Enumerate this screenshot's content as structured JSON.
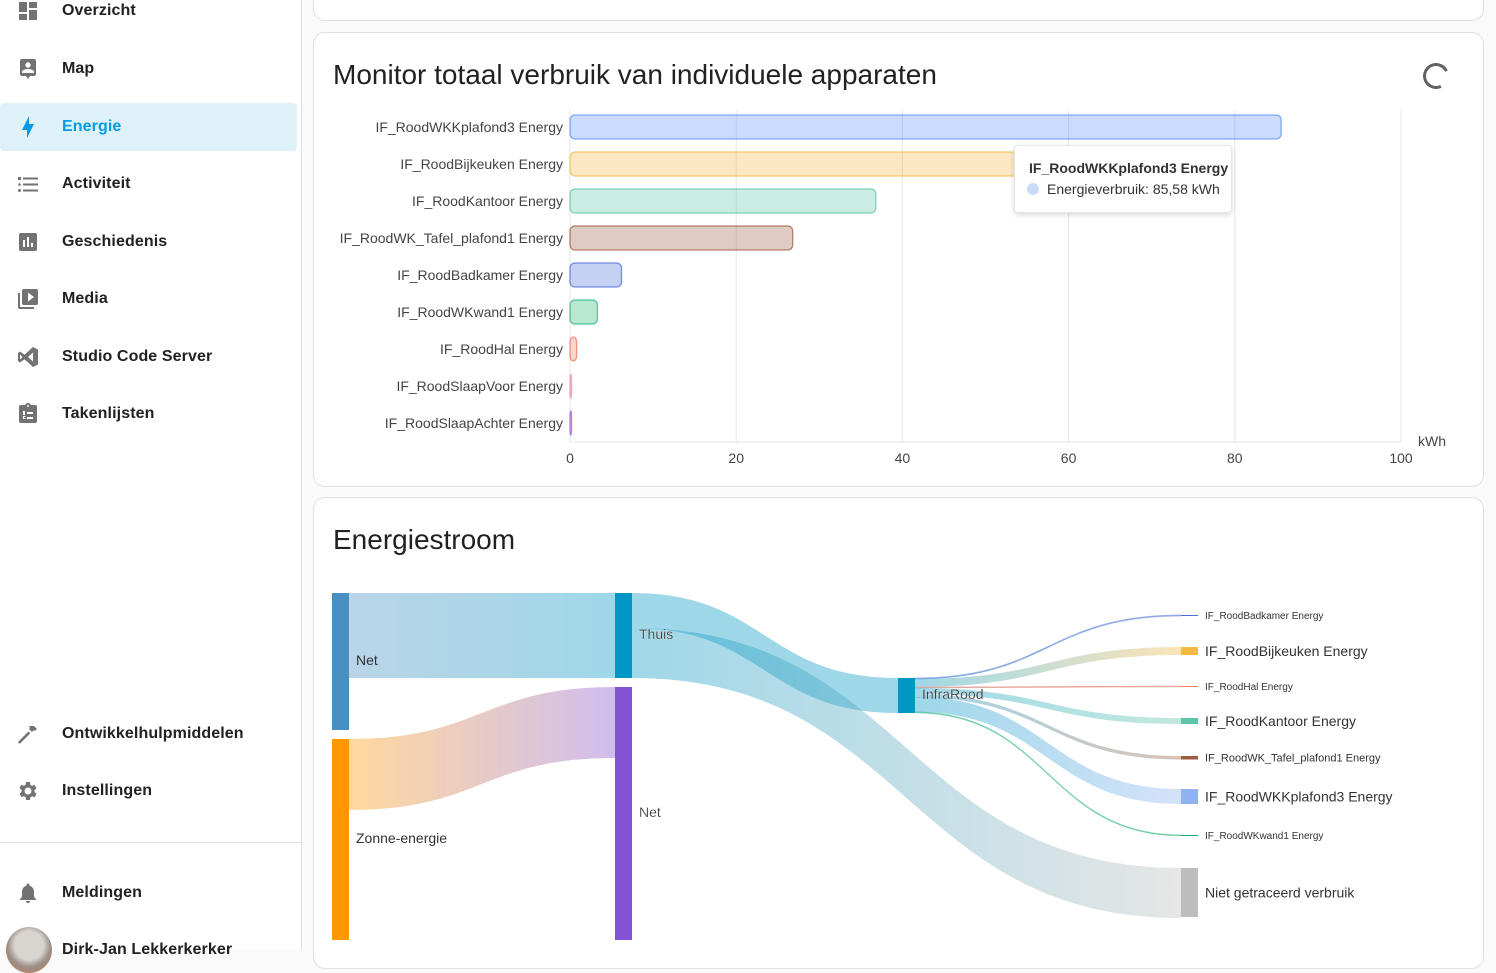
{
  "sidebar": {
    "items": [
      {
        "label": "Overzicht",
        "icon": "dashboard-icon"
      },
      {
        "label": "Map",
        "icon": "map-person-icon"
      },
      {
        "label": "Energie",
        "icon": "lightning-icon",
        "active": true
      },
      {
        "label": "Activiteit",
        "icon": "list-icon"
      },
      {
        "label": "Geschiedenis",
        "icon": "chart-box-icon"
      },
      {
        "label": "Media",
        "icon": "play-box-icon"
      },
      {
        "label": "Studio Code Server",
        "icon": "vscode-icon"
      },
      {
        "label": "Takenlijsten",
        "icon": "clipboard-list-icon"
      }
    ],
    "bottom_items": [
      {
        "label": "Ontwikkelhulpmiddelen",
        "icon": "hammer-icon"
      },
      {
        "label": "Instellingen",
        "icon": "gear-icon"
      }
    ],
    "notifications": {
      "label": "Meldingen",
      "icon": "bell-icon"
    },
    "user": {
      "name": "Dirk-Jan Lekkerkerker"
    },
    "accent_color": "#039be5"
  },
  "device_card": {
    "title": "Monitor totaal verbruik van individuele apparaten",
    "tooltip": {
      "title": "IF_RoodWKKplafond3 Energy",
      "value": "Energieverbruik: 85,58 kWh"
    }
  },
  "sankey_card": {
    "title": "Energiestroom"
  },
  "chart_data": [
    {
      "type": "bar",
      "orientation": "horizontal",
      "title": "Monitor totaal verbruik van individuele apparaten",
      "xlabel": "kWh",
      "ylabel": "",
      "xlim": [
        0,
        100
      ],
      "xticks": [
        "0",
        "20",
        "40",
        "60",
        "80",
        "100"
      ],
      "grid": true,
      "categories": [
        "IF_RoodWKKplafond3 Energy",
        "IF_RoodBijkeuken Energy",
        "IF_RoodKantoor Energy",
        "IF_RoodWK_Tafel_plafond1 Energy",
        "IF_RoodBadkamer Energy",
        "IF_RoodWKwand1 Energy",
        "IF_RoodHal Energy",
        "IF_RoodSlaapVoor Energy",
        "IF_RoodSlaapAchter Energy"
      ],
      "values": [
        85.58,
        55.1,
        36.8,
        26.8,
        6.2,
        3.3,
        0.8,
        0.1,
        0.1
      ],
      "colors": [
        "#5b8ff9",
        "#f4b942",
        "#5cc4a8",
        "#9b5d43",
        "#4a6fd8",
        "#22b573",
        "#f07a62",
        "#f08ab0",
        "#a45de0"
      ]
    },
    {
      "type": "sankey",
      "title": "Energiestroom",
      "nodes": [
        {
          "id": "grid_in",
          "label": "Net",
          "color": "#488fc2",
          "column": 0
        },
        {
          "id": "solar",
          "label": "Zonne-energie",
          "color": "#ff9800",
          "column": 0
        },
        {
          "id": "home",
          "label": "Thuis",
          "color": "#0097c4",
          "column": 1
        },
        {
          "id": "grid_out",
          "label": "Net",
          "color": "#8353d4",
          "column": 1
        },
        {
          "id": "infrarood",
          "label": "InfraRood",
          "color": "#0097c4",
          "column": 2
        },
        {
          "id": "badkamer",
          "label": "IF_RoodBadkamer Energy",
          "color": "#4a6fd8",
          "column": 3
        },
        {
          "id": "bijkeuken",
          "label": "IF_RoodBijkeuken Energy",
          "color": "#f4b942",
          "column": 3
        },
        {
          "id": "hal",
          "label": "IF_RoodHal Energy",
          "color": "#f07a62",
          "column": 3
        },
        {
          "id": "kantoor",
          "label": "IF_RoodKantoor Energy",
          "color": "#5cc4a8",
          "column": 3
        },
        {
          "id": "tafel",
          "label": "IF_RoodWK_Tafel_plafond1 Energy",
          "color": "#9b5d43",
          "column": 3
        },
        {
          "id": "wkkplafond3",
          "label": "IF_RoodWKKplafond3 Energy",
          "color": "#8fb3f0",
          "column": 3
        },
        {
          "id": "wkwand1",
          "label": "IF_RoodWKwand1 Energy",
          "color": "#22b573",
          "column": 3
        },
        {
          "id": "untracked",
          "label": "Niet getraceerd verbruik",
          "color": "#bdbdbd",
          "column": 3
        }
      ],
      "links": [
        {
          "source": "grid_in",
          "target": "home",
          "value": 100
        },
        {
          "source": "solar",
          "target": "grid_out",
          "value": 84
        },
        {
          "source": "home",
          "target": "infrarood",
          "value": 41
        },
        {
          "source": "home",
          "target": "untracked",
          "value": 59
        },
        {
          "source": "infrarood",
          "target": "badkamer",
          "value": 1.2
        },
        {
          "source": "infrarood",
          "target": "bijkeuken",
          "value": 9.5
        },
        {
          "source": "infrarood",
          "target": "hal",
          "value": 0.3
        },
        {
          "source": "infrarood",
          "target": "kantoor",
          "value": 6.3
        },
        {
          "source": "infrarood",
          "target": "tafel",
          "value": 4.6
        },
        {
          "source": "infrarood",
          "target": "wkkplafond3",
          "value": 14.7
        },
        {
          "source": "infrarood",
          "target": "wkwand1",
          "value": 0.6
        }
      ]
    }
  ]
}
